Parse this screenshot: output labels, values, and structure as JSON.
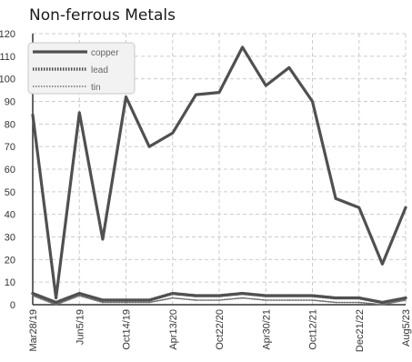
{
  "chart_data": {
    "type": "line",
    "title": "Non-ferrous Metals",
    "ylim": [
      0,
      120
    ],
    "yticks": [
      0,
      10,
      20,
      30,
      40,
      50,
      60,
      70,
      80,
      90,
      100,
      110,
      120
    ],
    "grid": true,
    "legend_position": "top-left",
    "x": [
      "Mar28/19",
      "",
      "Jun5/19",
      "",
      "Oct14/19",
      "",
      "Apr13/20",
      "",
      "Oct22/20",
      "",
      "Apr30/21",
      "",
      "Oct12/21",
      "",
      "Dec21/22",
      "",
      "Aug5/23"
    ],
    "x_tick_labels": [
      "Mar28/19",
      "Jun5/19",
      "Oct14/19",
      "Apr13/20",
      "Oct22/20",
      "Apr30/21",
      "Oct12/21",
      "Dec21/22",
      "Aug5/23"
    ],
    "series": [
      {
        "name": "copper",
        "color": "#505050",
        "style": "solid",
        "values": [
          84,
          3,
          85,
          29,
          92,
          70,
          76,
          93,
          94,
          114,
          97,
          105,
          90,
          47,
          43,
          18,
          43
        ]
      },
      {
        "name": "lead",
        "color": "#505050",
        "style": "dotted",
        "values": [
          5,
          1,
          5,
          2,
          2,
          2,
          5,
          4,
          4,
          5,
          4,
          4,
          4,
          3,
          3,
          1,
          3
        ]
      },
      {
        "name": "tin",
        "color": "#707070",
        "style": "dotted-thin",
        "values": [
          4,
          0,
          4,
          1,
          1,
          1,
          3,
          2,
          2,
          3,
          2,
          2,
          2,
          1,
          1,
          0,
          2
        ]
      }
    ]
  }
}
